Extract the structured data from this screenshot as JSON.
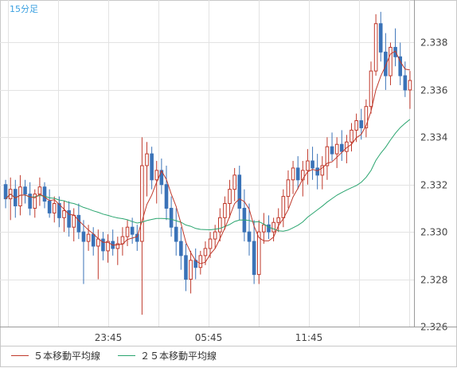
{
  "chart_data": {
    "type": "candlestick",
    "title": "15分足",
    "y_ticks": [
      "2.338",
      "2.336",
      "2.334",
      "2.332",
      "2.330",
      "2.328",
      "2.326"
    ],
    "x_ticks": [
      "23:45",
      "05:45",
      "11:45"
    ],
    "ylim": [
      2.326,
      2.3398
    ],
    "grid": true,
    "legend_position": "bottom",
    "colors": {
      "up": "#c0392b",
      "down": "#3a73b8",
      "ma5": "#c0392b",
      "ma25": "#2aa56f",
      "grid": "#e3e3e3",
      "title": "#3aa0e0"
    },
    "series": [
      {
        "name": "５本移動平均線",
        "key": "ma5"
      },
      {
        "name": "２５本移動平均線",
        "key": "ma25"
      }
    ],
    "ohlc": [
      [
        2.332,
        2.3322,
        2.331,
        2.3314
      ],
      [
        2.3314,
        2.3323,
        2.3305,
        2.3318
      ],
      [
        2.3318,
        2.3322,
        2.3306,
        2.3311
      ],
      [
        2.3311,
        2.3324,
        2.3307,
        2.3319
      ],
      [
        2.3319,
        2.3322,
        2.3312,
        2.3316
      ],
      [
        2.3316,
        2.3321,
        2.3307,
        2.331
      ],
      [
        2.331,
        2.3318,
        2.3306,
        2.3316
      ],
      [
        2.3316,
        2.3323,
        2.3311,
        2.3319
      ],
      [
        2.3319,
        2.3321,
        2.331,
        2.3313
      ],
      [
        2.3313,
        2.3318,
        2.3306,
        2.3308
      ],
      [
        2.3308,
        2.3315,
        2.3304,
        2.3312
      ],
      [
        2.3312,
        2.3315,
        2.3302,
        2.3306
      ],
      [
        2.3306,
        2.3313,
        2.33,
        2.3309
      ],
      [
        2.3309,
        2.3313,
        2.3298,
        2.3302
      ],
      [
        2.3302,
        2.331,
        2.3296,
        2.3307
      ],
      [
        2.3307,
        2.3312,
        2.3297,
        2.33
      ],
      [
        2.33,
        2.3305,
        2.3278,
        2.3296
      ],
      [
        2.3296,
        2.3303,
        2.3292,
        2.3299
      ],
      [
        2.3299,
        2.3302,
        2.329,
        2.3294
      ],
      [
        2.3294,
        2.3301,
        2.328,
        2.3297
      ],
      [
        2.3297,
        2.33,
        2.3288,
        2.3292
      ],
      [
        2.3292,
        2.3299,
        2.3287,
        2.3296
      ],
      [
        2.3296,
        2.3301,
        2.329,
        2.3293
      ],
      [
        2.3293,
        2.3298,
        2.3286,
        2.3295
      ],
      [
        2.3295,
        2.3302,
        2.329,
        2.3298
      ],
      [
        2.3298,
        2.3305,
        2.3294,
        2.3302
      ],
      [
        2.3302,
        2.3306,
        2.3295,
        2.3299
      ],
      [
        2.3299,
        2.3303,
        2.3292,
        2.3296
      ],
      [
        2.3296,
        2.334,
        2.3265,
        2.3328
      ],
      [
        2.3328,
        2.3338,
        2.3315,
        2.3333
      ],
      [
        2.3333,
        2.3336,
        2.3318,
        2.3322
      ],
      [
        2.3322,
        2.333,
        2.3312,
        2.3326
      ],
      [
        2.3326,
        2.3331,
        2.3316,
        2.332
      ],
      [
        2.332,
        2.3328,
        2.3305,
        2.331
      ],
      [
        2.331,
        2.3315,
        2.3298,
        2.3302
      ],
      [
        2.3302,
        2.331,
        2.329,
        2.3296
      ],
      [
        2.3296,
        2.3302,
        2.3284,
        2.329
      ],
      [
        2.329,
        2.3295,
        2.3275,
        2.328
      ],
      [
        2.328,
        2.3292,
        2.3274,
        2.3288
      ],
      [
        2.3288,
        2.3293,
        2.328,
        2.3285
      ],
      [
        2.3285,
        2.3292,
        2.3282,
        2.329
      ],
      [
        2.329,
        2.3296,
        2.3286,
        2.3293
      ],
      [
        2.3293,
        2.33,
        2.3289,
        2.3297
      ],
      [
        2.3297,
        2.3303,
        2.3293,
        2.33
      ],
      [
        2.33,
        2.331,
        2.3296,
        2.3306
      ],
      [
        2.3306,
        2.3315,
        2.3301,
        2.3312
      ],
      [
        2.3312,
        2.3322,
        2.3306,
        2.3318
      ],
      [
        2.3318,
        2.3327,
        2.3313,
        2.3324
      ],
      [
        2.3324,
        2.3328,
        2.3305,
        2.331
      ],
      [
        2.331,
        2.3318,
        2.3296,
        2.33
      ],
      [
        2.33,
        2.3312,
        2.329,
        2.3296
      ],
      [
        2.3296,
        2.3305,
        2.3278,
        2.3282
      ],
      [
        2.3282,
        2.3305,
        2.3278,
        2.33
      ],
      [
        2.33,
        2.3308,
        2.3295,
        2.3303
      ],
      [
        2.3303,
        2.3307,
        2.3297,
        2.33
      ],
      [
        2.33,
        2.3306,
        2.3296,
        2.3304
      ],
      [
        2.3304,
        2.331,
        2.33,
        2.3306
      ],
      [
        2.3306,
        2.3318,
        2.3302,
        2.3315
      ],
      [
        2.3315,
        2.3326,
        2.331,
        2.3322
      ],
      [
        2.3322,
        2.333,
        2.3316,
        2.3327
      ],
      [
        2.3327,
        2.3332,
        2.3318,
        2.3322
      ],
      [
        2.3322,
        2.333,
        2.3315,
        2.3326
      ],
      [
        2.3326,
        2.3335,
        2.332,
        2.333
      ],
      [
        2.333,
        2.3336,
        2.3322,
        2.3327
      ],
      [
        2.3327,
        2.3333,
        2.3318,
        2.3324
      ],
      [
        2.3324,
        2.3332,
        2.3318,
        2.3328
      ],
      [
        2.3328,
        2.334,
        2.3322,
        2.3336
      ],
      [
        2.3336,
        2.3342,
        2.333,
        2.3333
      ],
      [
        2.3333,
        2.334,
        2.3327,
        2.3337
      ],
      [
        2.3337,
        2.3343,
        2.333,
        2.3334
      ],
      [
        2.3334,
        2.3341,
        2.3329,
        2.3338
      ],
      [
        2.3338,
        2.3346,
        2.3334,
        2.3343
      ],
      [
        2.3343,
        2.335,
        2.3338,
        2.3347
      ],
      [
        2.3347,
        2.3352,
        2.3339,
        2.3344
      ],
      [
        2.3344,
        2.3356,
        2.334,
        2.3353
      ],
      [
        2.3353,
        2.3372,
        2.335,
        2.3368
      ],
      [
        2.3368,
        2.3392,
        2.3366,
        2.3388
      ],
      [
        2.3388,
        2.3393,
        2.3372,
        2.3376
      ],
      [
        2.3376,
        2.3384,
        2.336,
        2.3366
      ],
      [
        2.3366,
        2.338,
        2.3362,
        2.3378
      ],
      [
        2.3378,
        2.3386,
        2.337,
        2.3374
      ],
      [
        2.3374,
        2.338,
        2.3362,
        2.3366
      ],
      [
        2.3366,
        2.3372,
        2.3357,
        2.336
      ],
      [
        2.336,
        2.3368,
        2.3352,
        2.3364
      ]
    ]
  }
}
